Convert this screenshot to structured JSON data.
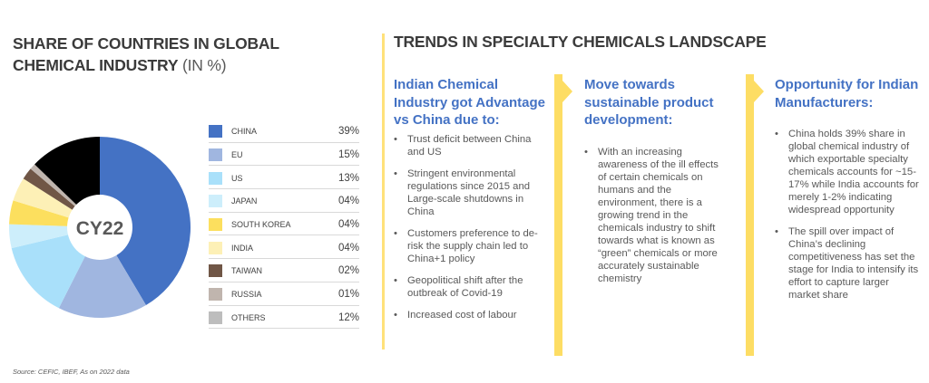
{
  "left_panel": {
    "title_bold_line1": "SHARE OF COUNTRIES IN GLOBAL",
    "title_bold_line2": "CHEMICAL INDUSTRY",
    "title_light": " (IN %)"
  },
  "chart_data": {
    "type": "pie",
    "variant": "donut",
    "title": "SHARE OF COUNTRIES IN GLOBAL CHEMICAL INDUSTRY (IN %)",
    "center_label": "CY22",
    "unit": "%",
    "categories": [
      "CHINA",
      "EU",
      "US",
      "JAPAN",
      "SOUTH KOREA",
      "INDIA",
      "TAIWAN",
      "RUSSIA",
      "OTHERS"
    ],
    "values": [
      39,
      15,
      13,
      4,
      4,
      4,
      2,
      1,
      12
    ],
    "value_labels": [
      "39%",
      "15%",
      "13%",
      "04%",
      "04%",
      "04%",
      "02%",
      "01%",
      "12%"
    ],
    "colors": [
      "#4472c4",
      "#a0b6e0",
      "#a9e0fa",
      "#cdeefb",
      "#fcdf5e",
      "#fdf0b6",
      "#705646",
      "#c0b5ae",
      "#bdbdbd"
    ],
    "pie_colors": [
      "#4472c4",
      "#a0b6e0",
      "#a9e0fa",
      "#cdeefb",
      "#fcdf5e",
      "#fdf0b6",
      "#705646",
      "#c0b5ae",
      "#000000"
    ],
    "legend_position": "right"
  },
  "right_panel": {
    "title": "TRENDS IN SPECIALTY CHEMICALS LANDSCAPE",
    "columns": [
      {
        "heading": "Indian Chemical Industry got Advantage vs China due to:",
        "bullets": [
          "Trust deficit between China and US",
          "Stringent environmental regulations since 2015 and Large-scale shutdowns in China",
          "Customers preference to de-risk the supply chain led to China+1 policy",
          "Geopolitical shift after the outbreak of Covid-19",
          "Increased cost of labour"
        ]
      },
      {
        "heading": "Move towards sustainable product development:",
        "bullets": [
          "With an increasing awareness of the ill effects of certain chemicals on humans and the environment, there is a growing trend in the chemicals industry to shift towards what is known as “green” chemicals or more accurately sustainable chemistry"
        ]
      },
      {
        "heading": "Opportunity for Indian Manufacturers:",
        "bullets": [
          "China holds 39% share in global chemical industry of which exportable specialty chemicals accounts for ~15-17% while India accounts for merely 1-2% indicating widespread opportunity",
          "The spill over impact of China’s declining competitiveness has set the stage for India to intensify its effort to capture larger market share"
        ]
      }
    ]
  },
  "footer": {
    "source": "Source: CEFIC, IBEF, As on 2022 data"
  }
}
